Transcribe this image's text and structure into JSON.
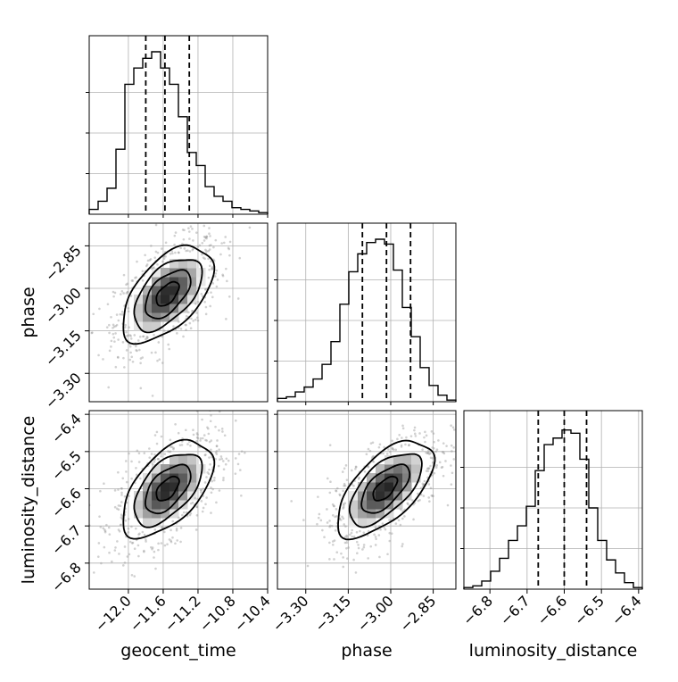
{
  "chart_data": {
    "type": "corner",
    "parameters": [
      "geocent_time",
      "phase",
      "luminosity_distance"
    ],
    "ranges": {
      "geocent_time": [
        -12.45,
        -10.4
      ],
      "phase": [
        -3.4,
        -2.77
      ],
      "luminosity_distance": [
        -6.87,
        -6.39
      ]
    },
    "ticks": {
      "geocent_time": [
        -12.0,
        -11.6,
        -11.2,
        -10.8,
        -10.4
      ],
      "phase": [
        -3.3,
        -3.15,
        -3.0,
        -2.85
      ],
      "luminosity_distance": [
        -6.8,
        -6.7,
        -6.6,
        -6.5,
        -6.4
      ]
    },
    "tick_labels": {
      "geocent_time": [
        "−12.0",
        "−11.6",
        "−11.2",
        "−10.8",
        "−10.4"
      ],
      "phase": [
        "−3.30",
        "−3.15",
        "−3.00",
        "−2.85"
      ],
      "luminosity_distance": [
        "−6.8",
        "−6.7",
        "−6.6",
        "−6.5",
        "−6.4"
      ]
    },
    "quantiles": {
      "geocent_time": [
        -11.8,
        -11.58,
        -11.3
      ],
      "phase": [
        -3.1,
        -3.015,
        -2.93
      ],
      "luminosity_distance": [
        -6.67,
        -6.6,
        -6.54
      ]
    },
    "histograms": {
      "geocent_time": [
        0.03,
        0.08,
        0.16,
        0.4,
        0.8,
        0.9,
        0.96,
        1.0,
        0.9,
        0.8,
        0.6,
        0.38,
        0.3,
        0.17,
        0.11,
        0.08,
        0.04,
        0.03,
        0.02,
        0.01
      ],
      "phase": [
        0.02,
        0.03,
        0.06,
        0.09,
        0.14,
        0.23,
        0.37,
        0.6,
        0.8,
        0.91,
        0.98,
        1.0,
        0.97,
        0.81,
        0.58,
        0.4,
        0.21,
        0.1,
        0.04,
        0.01
      ],
      "luminosity_distance": [
        0.01,
        0.02,
        0.05,
        0.11,
        0.19,
        0.3,
        0.39,
        0.51,
        0.73,
        0.89,
        0.93,
        0.98,
        0.96,
        0.8,
        0.5,
        0.3,
        0.18,
        0.1,
        0.04,
        0.01
      ]
    },
    "pairs": [
      {
        "x": "geocent_time",
        "y": "phase",
        "mean": [
          -11.55,
          -3.02
        ],
        "sd": [
          0.26,
          0.085
        ],
        "rho": 0.55
      },
      {
        "x": "geocent_time",
        "y": "luminosity_distance",
        "mean": [
          -11.55,
          -6.6
        ],
        "sd": [
          0.26,
          0.065
        ],
        "rho": 0.55
      },
      {
        "x": "phase",
        "y": "luminosity_distance",
        "mean": [
          -3.02,
          -6.6
        ],
        "sd": [
          0.085,
          0.065
        ],
        "rho": 0.62
      }
    ],
    "contour_levels_sigma": [
      0.5,
      1.0,
      1.5,
      2.0
    ],
    "grid": true
  }
}
